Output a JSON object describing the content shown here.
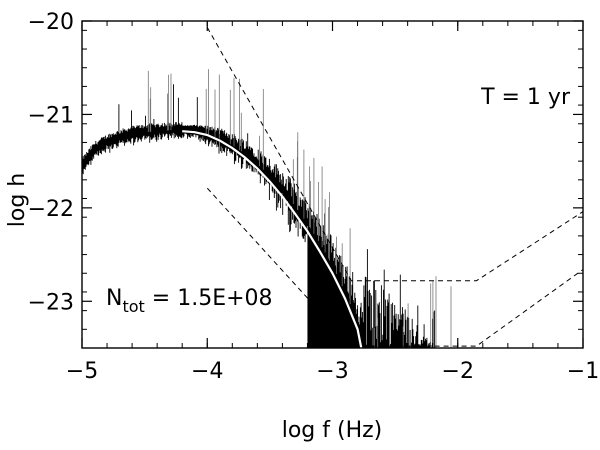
{
  "chart_data": {
    "type": "line",
    "xlabel": "log f (Hz)",
    "ylabel": "log h",
    "xlim": [
      -5,
      -1
    ],
    "ylim": [
      -23.5,
      -20
    ],
    "x_ticks": [
      -5,
      -4,
      -3,
      -2,
      -1
    ],
    "x_tick_labels": [
      "−5",
      "−4",
      "−3",
      "−2",
      "−1"
    ],
    "y_ticks": [
      -23,
      -22,
      -21,
      -20
    ],
    "y_tick_labels": [
      "−23",
      "−22",
      "−21",
      "−20"
    ],
    "grid": false,
    "annotations": {
      "period": "T = 1 yr",
      "count_prefix": "N",
      "count_subscript": "tot",
      "count_value": " = 1.5E+08"
    },
    "series": [
      {
        "style": "noisy-black-spectrum",
        "color": "#000000",
        "x": [
          -5.0,
          -4.9,
          -4.8,
          -4.7,
          -4.6,
          -4.5,
          -4.4,
          -4.3,
          -4.2,
          -4.1,
          -4.0,
          -3.9,
          -3.8,
          -3.7,
          -3.6,
          -3.5,
          -3.4,
          -3.3,
          -3.2,
          -3.1,
          -3.0,
          -2.9,
          -2.85,
          -2.8,
          -2.75,
          -2.7
        ],
        "y": [
          -21.55,
          -21.38,
          -21.3,
          -21.25,
          -21.21,
          -21.19,
          -21.18,
          -21.17,
          -21.17,
          -21.18,
          -21.21,
          -21.26,
          -21.33,
          -21.42,
          -21.53,
          -21.66,
          -21.81,
          -21.98,
          -22.17,
          -22.38,
          -22.62,
          -22.9,
          -23.06,
          -23.25,
          -23.45,
          -23.6
        ]
      },
      {
        "style": "smoothed-white",
        "color": "#ffffff",
        "x": [
          -4.2,
          -4.1,
          -4.0,
          -3.9,
          -3.8,
          -3.7,
          -3.6,
          -3.5,
          -3.4,
          -3.3,
          -3.2,
          -3.1,
          -3.0,
          -2.9,
          -2.8,
          -2.77,
          -2.76
        ],
        "y": [
          -21.18,
          -21.19,
          -21.22,
          -21.28,
          -21.36,
          -21.46,
          -21.58,
          -21.72,
          -21.88,
          -22.06,
          -22.25,
          -22.47,
          -22.7,
          -22.97,
          -23.3,
          -23.5,
          -23.6
        ]
      },
      {
        "style": "dashed-upper",
        "color": "#000000",
        "x": [
          -4.0,
          -2.85,
          -1.85,
          -1.0
        ],
        "y": [
          -20.07,
          -22.78,
          -22.78,
          -22.04
        ]
      },
      {
        "style": "dashed-lower",
        "color": "#000000",
        "x": [
          -4.0,
          -2.85,
          -1.85,
          -1.0
        ],
        "y": [
          -21.79,
          -23.48,
          -23.48,
          -22.66
        ]
      }
    ]
  }
}
